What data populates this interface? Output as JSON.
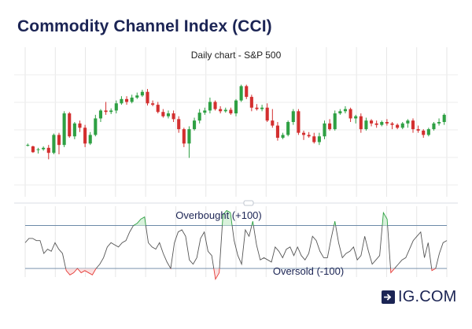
{
  "title": "Commodity Channel Index (CCI)",
  "logo": {
    "text": "IG.COM",
    "icon": "arrow-right-box-icon"
  },
  "colors": {
    "title": "#1b2454",
    "up": "#2ea043",
    "down": "#d32f2f",
    "cci_line": "#555555",
    "cci_over": "#2ea043",
    "cci_under": "#e53935",
    "threshold": "#6b8aa8",
    "grid": "#e6e6e6"
  },
  "chart_data": [
    {
      "type": "candlestick",
      "title": "Daily chart - S&P 500",
      "candles": [
        [
          128,
          128,
          126,
          130
        ],
        [
          126,
          118,
          117,
          127
        ],
        [
          121,
          122,
          116,
          124
        ],
        [
          122,
          124,
          120,
          126
        ],
        [
          124,
          117,
          108,
          128
        ],
        [
          117,
          142,
          115,
          144
        ],
        [
          142,
          128,
          115,
          145
        ],
        [
          128,
          172,
          125,
          175
        ],
        [
          172,
          140,
          138,
          174
        ],
        [
          140,
          158,
          136,
          160
        ],
        [
          158,
          152,
          146,
          162
        ],
        [
          152,
          130,
          125,
          156
        ],
        [
          130,
          142,
          128,
          146
        ],
        [
          142,
          165,
          140,
          170
        ],
        [
          165,
          176,
          160,
          178
        ],
        [
          176,
          174,
          170,
          188
        ],
        [
          174,
          176,
          171,
          179
        ],
        [
          176,
          186,
          172,
          190
        ],
        [
          186,
          192,
          184,
          196
        ],
        [
          192,
          188,
          184,
          196
        ],
        [
          188,
          194,
          186,
          198
        ],
        [
          194,
          197,
          192,
          201
        ],
        [
          197,
          202,
          195,
          205
        ],
        [
          202,
          186,
          183,
          206
        ],
        [
          186,
          184,
          182,
          190
        ],
        [
          184,
          174,
          172,
          188
        ],
        [
          174,
          168,
          166,
          178
        ],
        [
          168,
          172,
          165,
          176
        ],
        [
          172,
          164,
          160,
          176
        ],
        [
          164,
          150,
          145,
          168
        ],
        [
          150,
          130,
          125,
          152
        ],
        [
          130,
          150,
          110,
          154
        ],
        [
          150,
          162,
          148,
          166
        ],
        [
          162,
          173,
          158,
          178
        ],
        [
          173,
          176,
          170,
          180
        ],
        [
          176,
          188,
          172,
          194
        ],
        [
          188,
          178,
          176,
          190
        ],
        [
          178,
          175,
          172,
          182
        ],
        [
          175,
          177,
          173,
          180
        ],
        [
          177,
          172,
          170,
          180
        ],
        [
          172,
          190,
          168,
          192
        ],
        [
          190,
          210,
          188,
          212
        ],
        [
          210,
          195,
          192,
          212
        ],
        [
          195,
          180,
          175,
          198
        ],
        [
          180,
          178,
          176,
          185
        ],
        [
          178,
          180,
          175,
          184
        ],
        [
          180,
          162,
          160,
          186
        ],
        [
          162,
          155,
          152,
          178
        ],
        [
          155,
          138,
          134,
          160
        ],
        [
          138,
          142,
          136,
          145
        ],
        [
          142,
          160,
          140,
          162
        ],
        [
          160,
          175,
          156,
          178
        ],
        [
          175,
          145,
          142,
          178
        ],
        [
          145,
          142,
          135,
          148
        ],
        [
          142,
          140,
          138,
          146
        ],
        [
          140,
          132,
          130,
          145
        ],
        [
          132,
          140,
          128,
          145
        ],
        [
          140,
          158,
          136,
          162
        ],
        [
          158,
          150,
          148,
          164
        ],
        [
          150,
          172,
          148,
          176
        ],
        [
          172,
          175,
          170,
          178
        ],
        [
          175,
          178,
          172,
          182
        ],
        [
          178,
          165,
          160,
          180
        ],
        [
          165,
          168,
          158,
          170
        ],
        [
          168,
          150,
          145,
          172
        ],
        [
          150,
          162,
          148,
          166
        ],
        [
          162,
          158,
          154,
          164
        ],
        [
          158,
          156,
          152,
          162
        ],
        [
          156,
          160,
          154,
          162
        ],
        [
          160,
          158,
          155,
          164
        ],
        [
          158,
          156,
          150,
          160
        ],
        [
          156,
          152,
          150,
          158
        ],
        [
          152,
          158,
          150,
          160
        ],
        [
          158,
          162,
          152,
          164
        ],
        [
          162,
          150,
          145,
          165
        ],
        [
          150,
          148,
          145,
          155
        ],
        [
          148,
          142,
          138,
          150
        ],
        [
          142,
          150,
          140,
          152
        ],
        [
          150,
          158,
          148,
          160
        ],
        [
          158,
          160,
          155,
          165
        ],
        [
          160,
          170,
          156,
          172
        ]
      ]
    },
    {
      "type": "line",
      "title": "CCI",
      "annotations": [
        "Overbought (+100)",
        "Oversold (-100)"
      ],
      "thresholds": [
        100,
        -100
      ],
      "ylim": [
        -140,
        190
      ],
      "values": [
        20,
        40,
        40,
        30,
        30,
        -30,
        -10,
        -20,
        20,
        -10,
        -30,
        -110,
        -130,
        -120,
        -100,
        -120,
        -110,
        -120,
        -130,
        -100,
        -80,
        -50,
        0,
        20,
        10,
        0,
        20,
        30,
        70,
        100,
        110,
        130,
        140,
        20,
        0,
        -10,
        20,
        -30,
        -70,
        -100,
        20,
        70,
        80,
        50,
        -60,
        -80,
        -50,
        40,
        70,
        -20,
        -40,
        -150,
        -120,
        150,
        170,
        160,
        30,
        -40,
        -80,
        80,
        50,
        120,
        10,
        -60,
        -50,
        -60,
        -70,
        0,
        -20,
        -50,
        -10,
        0,
        -40,
        0,
        -40,
        -60,
        -30,
        50,
        30,
        -20,
        -50,
        -50,
        40,
        120,
        20,
        -50,
        -30,
        -20,
        0,
        -60,
        -40,
        50,
        -20,
        -80,
        -60,
        -40,
        160,
        130,
        -120,
        -100,
        -80,
        -60,
        -50,
        -10,
        30,
        50,
        70,
        -50,
        20,
        -110,
        -100,
        -30,
        20,
        30
      ]
    }
  ]
}
